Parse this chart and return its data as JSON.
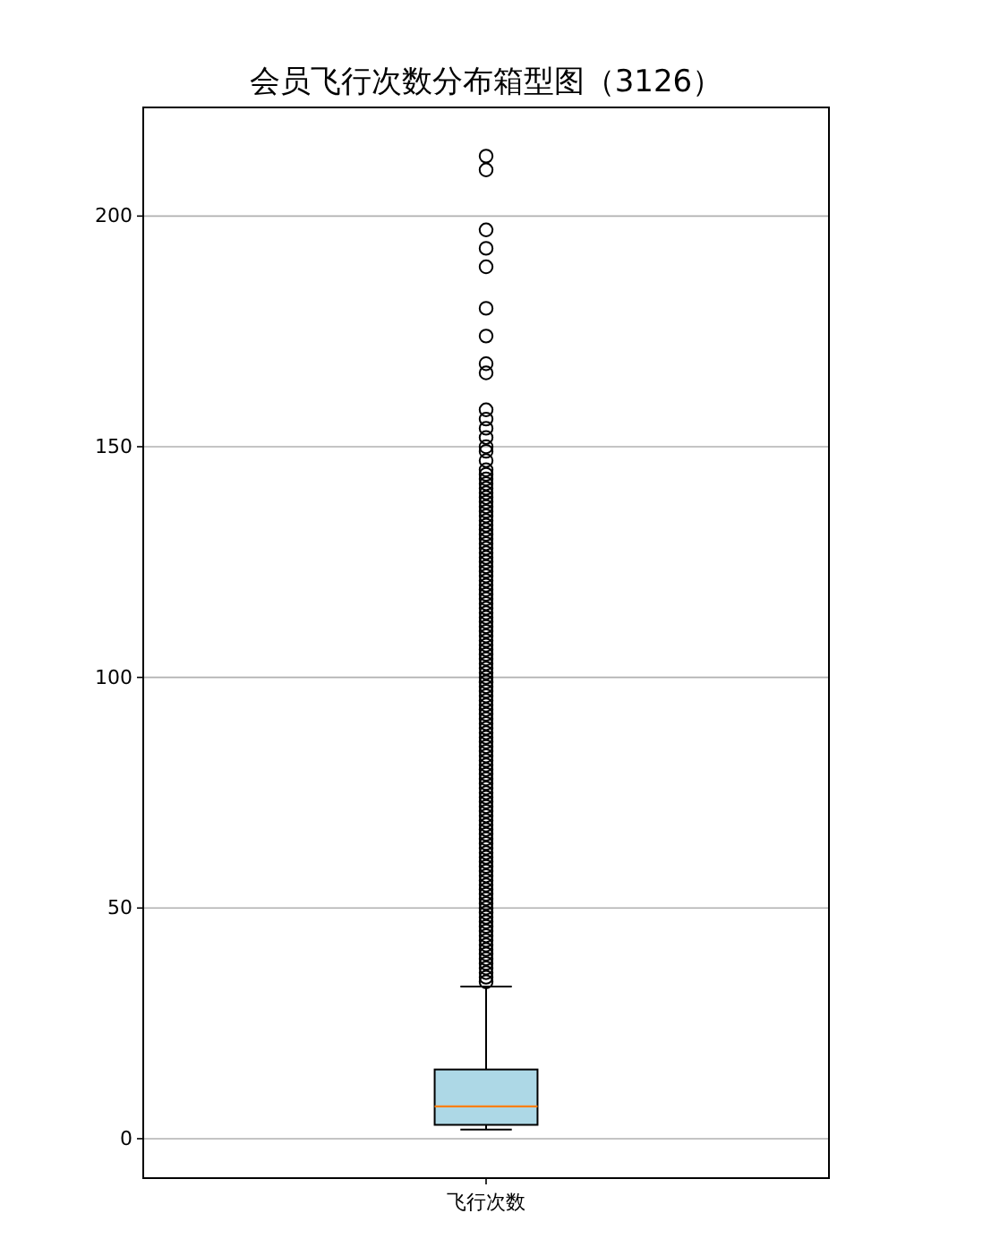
{
  "chart_data": {
    "type": "box",
    "title": "会员飞行次数分布箱型图（3126）",
    "categories": [
      "飞行次数"
    ],
    "boxes": [
      {
        "low": 2,
        "q1": 3,
        "median": 7,
        "q3": 15,
        "high": 33,
        "outliers": [
          34,
          35,
          36,
          37,
          38,
          39,
          40,
          41,
          42,
          43,
          44,
          45,
          46,
          47,
          48,
          49,
          50,
          51,
          52,
          53,
          54,
          55,
          56,
          57,
          58,
          59,
          60,
          61,
          62,
          63,
          64,
          65,
          66,
          67,
          68,
          69,
          70,
          71,
          72,
          73,
          74,
          75,
          76,
          77,
          78,
          79,
          80,
          81,
          82,
          83,
          84,
          85,
          86,
          87,
          88,
          89,
          90,
          91,
          92,
          93,
          94,
          95,
          96,
          97,
          98,
          99,
          100,
          101,
          102,
          103,
          104,
          105,
          106,
          107,
          108,
          109,
          110,
          111,
          112,
          113,
          114,
          115,
          116,
          117,
          118,
          119,
          120,
          121,
          122,
          123,
          124,
          125,
          126,
          127,
          128,
          129,
          130,
          131,
          132,
          133,
          134,
          135,
          136,
          137,
          138,
          139,
          140,
          141,
          142,
          143,
          144,
          145,
          147,
          149,
          150,
          152,
          154,
          156,
          158,
          166,
          168,
          174,
          180,
          189,
          193,
          197,
          210,
          213
        ]
      }
    ],
    "colors": [
      "#add8e6"
    ],
    "ylim": [
      -8.55,
      223.55
    ],
    "yticks": [
      0,
      50,
      100,
      150,
      200
    ],
    "grid": "y",
    "marker": "circle"
  }
}
